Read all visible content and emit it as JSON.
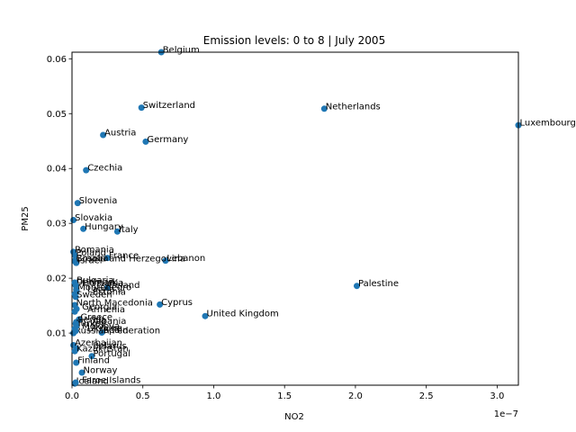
{
  "chart_data": {
    "type": "scatter",
    "title": "Emission levels: 0 to 8 | July 2005",
    "xlabel": "NO2",
    "ylabel": "PM25",
    "x_offset_label": "1e−7",
    "xlim": [
      0,
      3.15e-07
    ],
    "ylim": [
      0.0005,
      0.0612
    ],
    "x_ticks": [
      0,
      5e-08,
      1e-07,
      1.5e-07,
      2e-07,
      2.5e-07,
      3e-07
    ],
    "x_tick_labels": [
      "0.0",
      "0.5",
      "1.0",
      "1.5",
      "2.0",
      "2.5",
      "3.0"
    ],
    "y_ticks": [
      0.01,
      0.02,
      0.03,
      0.04,
      0.05,
      0.06
    ],
    "y_tick_labels": [
      "0.01",
      "0.02",
      "0.03",
      "0.04",
      "0.05",
      "0.06"
    ],
    "grid": false,
    "marker_color": "#1f77b4",
    "points": [
      {
        "label": "Belgium",
        "x": 6.3e-08,
        "y": 0.0612
      },
      {
        "label": "Switzerland",
        "x": 4.9e-08,
        "y": 0.0511
      },
      {
        "label": "Netherlands",
        "x": 1.78e-07,
        "y": 0.0509
      },
      {
        "label": "Luxembourg",
        "x": 3.15e-07,
        "y": 0.0479
      },
      {
        "label": "Austria",
        "x": 2.2e-08,
        "y": 0.0461
      },
      {
        "label": "Germany",
        "x": 5.2e-08,
        "y": 0.0449
      },
      {
        "label": "Czechia",
        "x": 1e-08,
        "y": 0.0397
      },
      {
        "label": "Slovenia",
        "x": 4e-09,
        "y": 0.0337
      },
      {
        "label": "Slovakia",
        "x": 1e-09,
        "y": 0.0306
      },
      {
        "label": "Hungary",
        "x": 8e-09,
        "y": 0.029
      },
      {
        "label": "Italy",
        "x": 3.2e-08,
        "y": 0.0285
      },
      {
        "label": "Romania",
        "x": 1e-09,
        "y": 0.0248
      },
      {
        "label": "Poland",
        "x": 2e-09,
        "y": 0.0242
      },
      {
        "label": "France",
        "x": 2.5e-08,
        "y": 0.0237
      },
      {
        "label": "Croatia",
        "x": 2e-09,
        "y": 0.0232
      },
      {
        "label": "Bosnia and Herzegovina",
        "x": 2e-09,
        "y": 0.0231
      },
      {
        "label": "Lebanon",
        "x": 6.6e-08,
        "y": 0.0232
      },
      {
        "label": "Israel",
        "x": 3e-09,
        "y": 0.0228
      },
      {
        "label": "Palestine",
        "x": 2.01e-07,
        "y": 0.0186
      },
      {
        "label": "Denmark",
        "x": 2e-09,
        "y": 0.0189
      },
      {
        "label": "Ireland",
        "x": 2.5e-08,
        "y": 0.0183
      },
      {
        "label": "Montenegro",
        "x": 3e-09,
        "y": 0.0179
      },
      {
        "label": "Cyprus",
        "x": 6.2e-08,
        "y": 0.0152
      },
      {
        "label": "North Macedonia",
        "x": 2e-09,
        "y": 0.0151
      },
      {
        "label": "United Kingdom",
        "x": 9.4e-08,
        "y": 0.0131
      },
      {
        "label": "Greece",
        "x": 5e-09,
        "y": 0.0125
      },
      {
        "label": "Serbia",
        "x": 3e-09,
        "y": 0.012
      },
      {
        "label": "Spain",
        "x": 2.1e-08,
        "y": 0.0101
      },
      {
        "label": "Russian Federation",
        "x": 1e-09,
        "y": 0.01
      },
      {
        "label": "Azerbaijan",
        "x": 1e-09,
        "y": 0.0078
      },
      {
        "label": "Portugal",
        "x": 1.4e-08,
        "y": 0.0058
      },
      {
        "label": "Finland",
        "x": 3e-09,
        "y": 0.0046
      },
      {
        "label": "Norway",
        "x": 7e-09,
        "y": 0.0028
      },
      {
        "label": "Iceland",
        "x": 2e-09,
        "y": 0.0008
      }
    ],
    "unplaced_labels": [
      "Bulgaria",
      "Lithuania",
      "Latvia",
      "Estonia",
      "Sweden",
      "Georgia",
      "Armenia",
      "Albania",
      "Turkey",
      "Moldova",
      "Ukraine",
      "Belarus",
      "Kazakhstan",
      "Faroe Islands"
    ]
  }
}
